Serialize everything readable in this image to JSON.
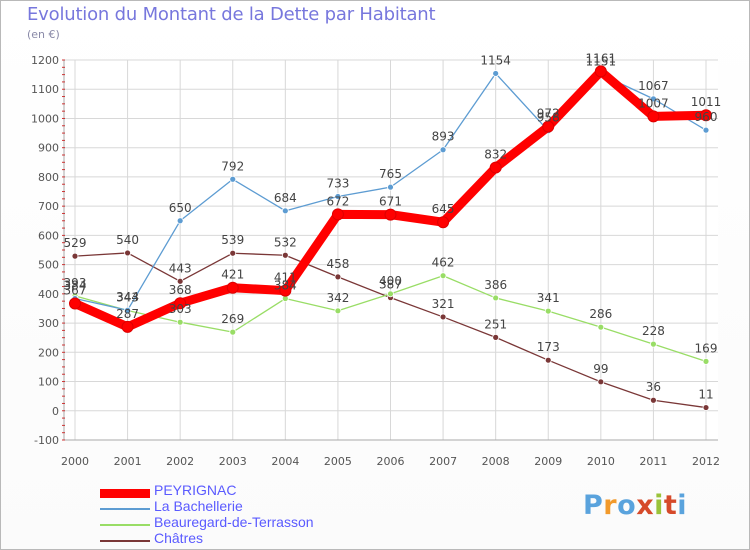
{
  "title": "Evolution du Montant de la Dette par Habitant",
  "unit_label": "(en €)",
  "logo": {
    "letters": [
      "P",
      "r",
      "o",
      "x",
      "i",
      "t",
      "i"
    ],
    "colors": [
      "#5aa3dd",
      "#f29a2b",
      "#5aa3dd",
      "#d64a2a",
      "#9ac33a",
      "#d64a2a",
      "#5aa3dd"
    ]
  },
  "chart_data": {
    "type": "line",
    "title": "Evolution du Montant de la Dette par Habitant",
    "ylabel": "(en €)",
    "xlabel": "",
    "x": [
      "2000",
      "2001",
      "2002",
      "2003",
      "2004",
      "2005",
      "2006",
      "2007",
      "2008",
      "2009",
      "2010",
      "2011",
      "2012"
    ],
    "ylim": [
      -100,
      1200
    ],
    "yticks": [
      "-100",
      "0",
      "100",
      "200",
      "300",
      "400",
      "500",
      "600",
      "700",
      "800",
      "900",
      "1000",
      "1100",
      "1200"
    ],
    "grid": true,
    "legend": "bottom-left",
    "series": [
      {
        "name": "PEYRIGNAC",
        "color": "#ff0000",
        "values": [
          367,
          287,
          368,
          421,
          411,
          672,
          671,
          645,
          832,
          972,
          1161,
          1007,
          1011
        ],
        "labels": [
          "367",
          "287",
          "368",
          "421",
          "411",
          "672",
          "671",
          "645",
          "832",
          "972",
          "1161",
          "1007",
          "1011"
        ]
      },
      {
        "name": "La Bachellerie",
        "color": "#5d9cd2",
        "values": [
          384,
          344,
          650,
          792,
          684,
          733,
          765,
          893,
          1154,
          958,
          1151,
          1067,
          960
        ],
        "labels": [
          "384",
          "344",
          "650",
          "792",
          "684",
          "733",
          "765",
          "893",
          "1154",
          "958",
          "1151",
          "1067",
          "960"
        ]
      },
      {
        "name": "Beauregard-de-Terrasson",
        "color": "#99dd66",
        "values": [
          393,
          343,
          303,
          269,
          384,
          342,
          400,
          462,
          386,
          341,
          286,
          228,
          169
        ],
        "labels": [
          "393",
          "343",
          "303",
          "269",
          "384",
          "342",
          "400",
          "462",
          "386",
          "341",
          "286",
          "228",
          "169"
        ]
      },
      {
        "name": "Châtres",
        "color": "#7a3737",
        "values": [
          529,
          540,
          443,
          539,
          532,
          458,
          387,
          321,
          251,
          173,
          99,
          36,
          11
        ],
        "labels": [
          "529",
          "540",
          "443",
          "539",
          "532",
          "458",
          "387",
          "321",
          "251",
          "173",
          "99",
          "36",
          "11"
        ]
      }
    ]
  }
}
